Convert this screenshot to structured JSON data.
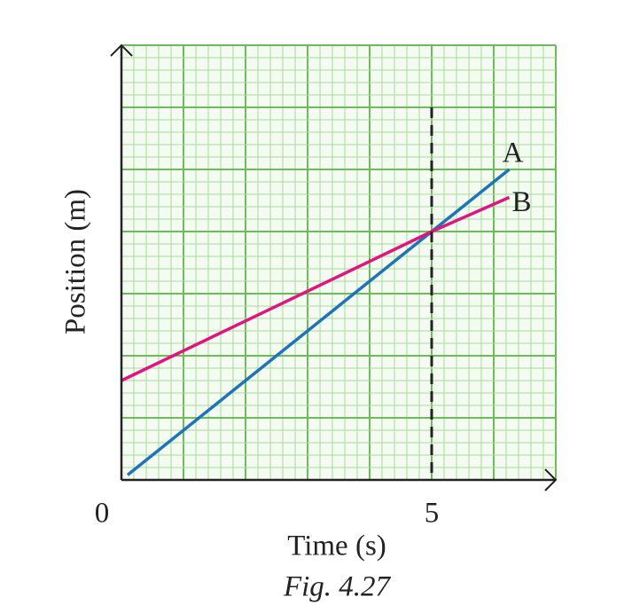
{
  "chart_data": {
    "type": "line",
    "xlabel": "Time (s)",
    "ylabel": "Position (m)",
    "caption": "Fig. 4.27",
    "xlim": [
      0,
      7
    ],
    "ylim": [
      0,
      7
    ],
    "xticks": [
      0,
      5
    ],
    "grid": true,
    "series": [
      {
        "name": "A",
        "color": "#1f74b8",
        "x": [
          0.1,
          5,
          6.25
        ],
        "values": [
          0.08,
          4,
          5
        ]
      },
      {
        "name": "B",
        "color": "#e0157f",
        "x": [
          0,
          5,
          6.25
        ],
        "values": [
          1.6,
          4,
          4.55
        ]
      }
    ],
    "vline": {
      "x": 5,
      "ymax": 6
    }
  }
}
